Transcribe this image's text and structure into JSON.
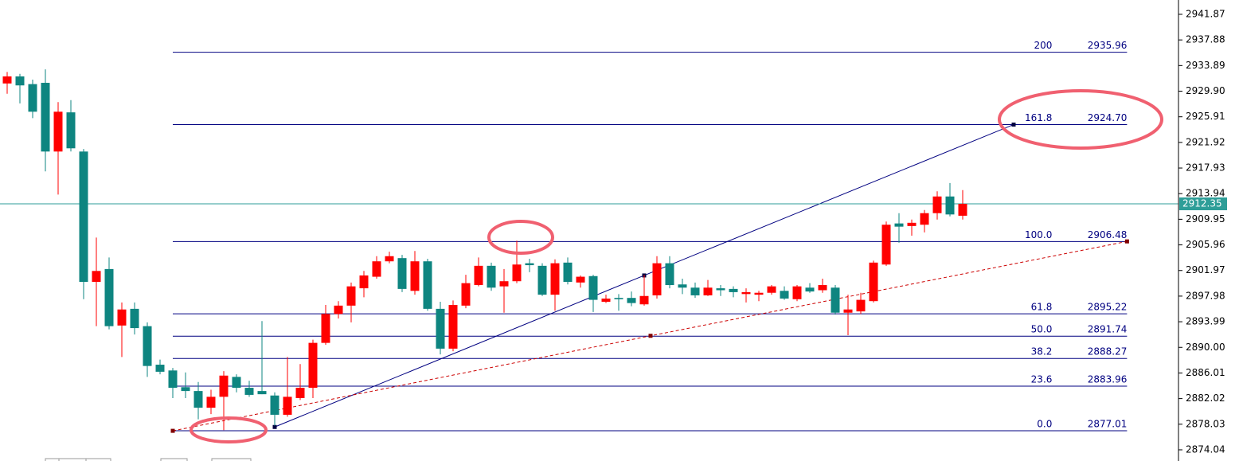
{
  "chart_data": {
    "type": "candlestick",
    "up_color": "#ff0000",
    "down_color": "#0e8580",
    "open": [
      2931.1,
      2932.2,
      2931.0,
      2931.2,
      2920.5,
      2926.6,
      2920.5,
      2900.2,
      2902.2,
      2893.4,
      2896.0,
      2893.3,
      2887.3,
      2886.4,
      2883.8,
      2883.2,
      2880.6,
      2882.3,
      2885.4,
      2883.7,
      2883.2,
      2882.5,
      2879.5,
      2882.1,
      2883.7,
      2890.7,
      2895.2,
      2896.5,
      2899.2,
      2901.0,
      2903.4,
      2903.9,
      2898.8,
      2903.4,
      2896.0,
      2889.8,
      2896.5,
      2899.7,
      2902.7,
      2899.5,
      2900.3,
      2903.1,
      2902.7,
      2898.2,
      2903.2,
      2900.1,
      2901.1,
      2897.1,
      2897.7,
      2897.7,
      2896.7,
      2898.1,
      2903.1,
      2899.8,
      2899.3,
      2898.1,
      2899.2,
      2899.1,
      2898.3,
      2898.2,
      2898.5,
      2898.8,
      2897.5,
      2899.3,
      2898.9,
      2899.3,
      2895.4,
      2895.6,
      2897.2,
      2902.9,
      2909.3,
      2908.9,
      2909.1,
      2910.9,
      2913.5,
      2910.5
    ],
    "high": [
      2932.9,
      2932.6,
      2931.7,
      2933.3,
      2928.2,
      2928.5,
      2920.9,
      2907.1,
      2904.0,
      2897.0,
      2897.0,
      2893.9,
      2888.1,
      2886.8,
      2886.1,
      2884.6,
      2883.4,
      2886.3,
      2885.8,
      2884.8,
      2894.1,
      2883.0,
      2888.5,
      2887.4,
      2891.2,
      2896.6,
      2897.2,
      2900.1,
      2901.9,
      2904.2,
      2904.9,
      2904.4,
      2905.0,
      2903.8,
      2897.1,
      2897.3,
      2901.3,
      2904.0,
      2903.2,
      2902.2,
      2906.6,
      2903.8,
      2903.1,
      2903.7,
      2904.0,
      2901.2,
      2901.3,
      2898.2,
      2898.3,
      2898.7,
      2901.3,
      2904.2,
      2904.2,
      2900.7,
      2900.1,
      2900.5,
      2899.7,
      2899.5,
      2899.2,
      2898.8,
      2899.7,
      2899.5,
      2899.7,
      2900.0,
      2900.7,
      2899.7,
      2898.2,
      2898.5,
      2903.5,
      2909.6,
      2910.9,
      2909.9,
      2911.4,
      2914.3,
      2915.6,
      2914.5
    ],
    "low": [
      2929.5,
      2928.0,
      2925.7,
      2917.4,
      2913.8,
      2920.5,
      2897.5,
      2893.3,
      2892.8,
      2888.5,
      2892.0,
      2885.4,
      2885.8,
      2882.1,
      2882.1,
      2878.8,
      2879.6,
      2877.1,
      2883.0,
      2882.3,
      2882.7,
      2877.8,
      2879.2,
      2881.8,
      2882.1,
      2890.4,
      2894.5,
      2893.9,
      2897.8,
      2900.7,
      2903.1,
      2898.6,
      2898.2,
      2895.7,
      2888.9,
      2889.4,
      2896.1,
      2899.5,
      2898.8,
      2895.4,
      2900.0,
      2901.7,
      2898.0,
      2895.7,
      2899.8,
      2899.3,
      2895.5,
      2896.9,
      2895.7,
      2896.4,
      2896.5,
      2897.6,
      2899.2,
      2898.3,
      2897.7,
      2898.0,
      2898.0,
      2897.8,
      2897.0,
      2897.2,
      2898.2,
      2897.4,
      2897.2,
      2898.5,
      2898.5,
      2895.1,
      2891.9,
      2895.2,
      2897.0,
      2902.7,
      2906.3,
      2907.4,
      2907.9,
      2909.9,
      2910.4,
      2909.9
    ],
    "close": [
      2932.2,
      2930.8,
      2926.7,
      2920.5,
      2926.7,
      2921.0,
      2900.2,
      2901.9,
      2893.3,
      2895.9,
      2893.0,
      2887.1,
      2886.2,
      2883.7,
      2883.2,
      2880.6,
      2882.3,
      2885.6,
      2883.7,
      2882.6,
      2882.7,
      2879.5,
      2882.3,
      2883.7,
      2890.7,
      2895.2,
      2896.5,
      2899.5,
      2901.2,
      2903.4,
      2904.2,
      2899.1,
      2903.4,
      2896.0,
      2889.8,
      2896.6,
      2900.0,
      2902.7,
      2899.3,
      2900.3,
      2902.9,
      2902.8,
      2898.2,
      2903.1,
      2900.2,
      2901.0,
      2897.4,
      2897.6,
      2897.5,
      2896.9,
      2898.0,
      2903.1,
      2899.7,
      2899.3,
      2898.1,
      2899.3,
      2898.9,
      2898.6,
      2898.6,
      2898.5,
      2899.5,
      2897.6,
      2899.5,
      2898.7,
      2899.7,
      2895.4,
      2895.9,
      2897.4,
      2903.2,
      2909.1,
      2908.8,
      2909.4,
      2910.9,
      2913.5,
      2910.7,
      2912.35
    ],
    "ylim": [
      2872.3,
      2944.1
    ],
    "yticks": [
      2941.87,
      2937.88,
      2933.89,
      {
        "value": 2929.9,
        "label": "2929.90"
      },
      2925.91,
      2921.92,
      2917.93,
      2913.94,
      2909.95,
      2905.96,
      2901.97,
      2897.98,
      2893.99,
      {
        "value": 2890,
        "label": "2890.00"
      },
      2886.01,
      2882.02,
      2878.03,
      2874.04
    ],
    "last_price_color": "#2e9e98",
    "fibonacci": {
      "color": "#000080",
      "x": [
        13,
        87.9
      ],
      "ratios": [
        "200",
        "161.8",
        "100.0",
        "61.8",
        "50.0",
        "38.2",
        "23.6",
        "0.0"
      ],
      "prices": [
        2935.96,
        2924.7,
        2906.48,
        2895.22,
        2891.74,
        2888.27,
        2883.96,
        2877.01
      ],
      "value_labels": [
        "2935.96",
        "2924.70",
        "2906.48",
        "2895.22",
        "2891.74",
        "2888.27",
        "2883.96",
        "2877.01"
      ]
    },
    "trendlines": [
      {
        "color": "#000080",
        "style": "solid",
        "x": [
          21,
          50,
          79
        ],
        "y": [
          2877.6,
          2901.2,
          2924.7
        ]
      },
      {
        "color": "#cc0000",
        "style": "dashed",
        "x": [
          13,
          50.5,
          87.9
        ],
        "y": [
          2877.0,
          2891.8,
          2906.5
        ]
      }
    ]
  }
}
